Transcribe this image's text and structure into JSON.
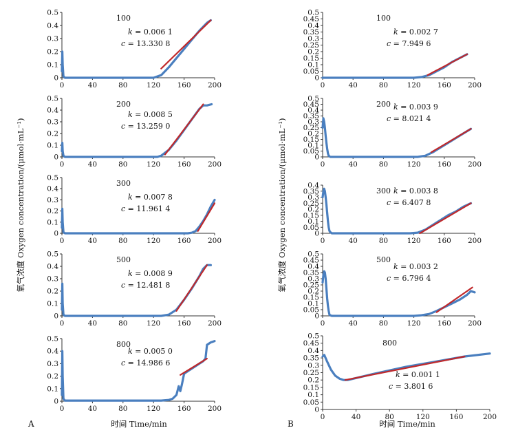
{
  "figure": {
    "panel_labels": [
      "A",
      "B"
    ],
    "xlabel": "时间 Time/min",
    "ylabel": "氧气浓度 Oxygen concentration/(μmol·mL⁻¹)",
    "colors": {
      "data_line": "#4a7fbf",
      "fit_line": "#c0282a",
      "axis": "#333333"
    }
  },
  "chart_data": [
    {
      "id": "A100",
      "type": "line",
      "panel": "A",
      "label": "100",
      "k": "0.006 1",
      "c": "13.330 8",
      "xlim": [
        0,
        200
      ],
      "ylim": [
        0,
        0.5
      ],
      "xticks": [
        0,
        40,
        80,
        120,
        160,
        200
      ],
      "yticks": [
        0,
        0.1,
        0.2,
        0.3,
        0.4,
        0.5
      ],
      "series": [
        {
          "name": "measured",
          "x": [
            0,
            0.5,
            1,
            2,
            4,
            120,
            130,
            140,
            150,
            160,
            170,
            180,
            190,
            195
          ],
          "y": [
            0.05,
            0.2,
            0.1,
            0.01,
            0,
            0,
            0.02,
            0.08,
            0.15,
            0.22,
            0.29,
            0.36,
            0.42,
            0.44
          ]
        },
        {
          "name": "fit",
          "x": [
            130,
            195
          ],
          "y": [
            0.07,
            0.44
          ]
        }
      ]
    },
    {
      "id": "A200",
      "type": "line",
      "panel": "A",
      "label": "200",
      "k": "0.008 5",
      "c": "13.259 0",
      "xlim": [
        0,
        200
      ],
      "ylim": [
        0,
        0.5
      ],
      "xticks": [
        0,
        40,
        80,
        120,
        160,
        200
      ],
      "yticks": [
        0,
        0.1,
        0.2,
        0.3,
        0.4,
        0.5
      ],
      "series": [
        {
          "name": "measured",
          "x": [
            0,
            0.5,
            1,
            2,
            4,
            125,
            130,
            140,
            150,
            160,
            170,
            180,
            185,
            190,
            196
          ],
          "y": [
            0.05,
            0.12,
            0.05,
            0.01,
            0,
            0,
            0.01,
            0.06,
            0.14,
            0.23,
            0.32,
            0.41,
            0.44,
            0.44,
            0.45
          ]
        },
        {
          "name": "fit",
          "x": [
            135,
            185
          ],
          "y": [
            0.02,
            0.45
          ]
        }
      ]
    },
    {
      "id": "A300",
      "type": "line",
      "panel": "A",
      "label": "300",
      "k": "0.007 8",
      "c": "11.961 4",
      "xlim": [
        0,
        200
      ],
      "ylim": [
        0,
        0.5
      ],
      "xticks": [
        0,
        40,
        80,
        120,
        160,
        200
      ],
      "yticks": [
        0,
        0.1,
        0.2,
        0.3,
        0.4,
        0.5
      ],
      "series": [
        {
          "name": "measured",
          "x": [
            0,
            0.5,
            1,
            2,
            4,
            165,
            170,
            175,
            180,
            185,
            190,
            195,
            200
          ],
          "y": [
            0.05,
            0.22,
            0.1,
            0.01,
            0,
            0,
            0.005,
            0.02,
            0.06,
            0.11,
            0.17,
            0.24,
            0.3
          ]
        },
        {
          "name": "fit",
          "x": [
            178,
            200
          ],
          "y": [
            0.02,
            0.27
          ]
        }
      ]
    },
    {
      "id": "A500",
      "type": "line",
      "panel": "A",
      "label": "500",
      "k": "0.008 9",
      "c": "12.481 8",
      "xlim": [
        0,
        200
      ],
      "ylim": [
        0,
        0.5
      ],
      "xticks": [
        0,
        40,
        80,
        120,
        160,
        200
      ],
      "yticks": [
        0,
        0.1,
        0.2,
        0.3,
        0.4,
        0.5
      ],
      "series": [
        {
          "name": "measured",
          "x": [
            0,
            0.5,
            1,
            2,
            4,
            130,
            140,
            150,
            160,
            170,
            180,
            185,
            190,
            195
          ],
          "y": [
            0.05,
            0.26,
            0.1,
            0.01,
            0,
            0,
            0.01,
            0.05,
            0.13,
            0.22,
            0.32,
            0.38,
            0.41,
            0.41
          ]
        },
        {
          "name": "fit",
          "x": [
            150,
            190
          ],
          "y": [
            0.04,
            0.41
          ]
        }
      ]
    },
    {
      "id": "A800",
      "type": "line",
      "panel": "A",
      "label": "800",
      "k": "0.005 0",
      "c": "14.986 6",
      "xlim": [
        0,
        200
      ],
      "ylim": [
        0,
        0.5
      ],
      "xticks": [
        0,
        40,
        80,
        120,
        160,
        200
      ],
      "yticks": [
        0,
        0.1,
        0.2,
        0.3,
        0.4,
        0.5
      ],
      "series": [
        {
          "name": "measured",
          "x": [
            0,
            0.5,
            1,
            2,
            4,
            130,
            140,
            145,
            150,
            153,
            155,
            157,
            160,
            165,
            170,
            175,
            180,
            185,
            188,
            190,
            195,
            200
          ],
          "y": [
            0.05,
            0.4,
            0.2,
            0.02,
            0.005,
            0.005,
            0.01,
            0.02,
            0.05,
            0.12,
            0.08,
            0.13,
            0.22,
            0.24,
            0.26,
            0.28,
            0.3,
            0.32,
            0.34,
            0.45,
            0.47,
            0.48
          ]
        },
        {
          "name": "fit",
          "x": [
            155,
            190
          ],
          "y": [
            0.21,
            0.34
          ]
        }
      ]
    },
    {
      "id": "B100",
      "type": "line",
      "panel": "B",
      "label": "100",
      "k": "0.002 7",
      "c": "7.949 6",
      "xlim": [
        0,
        200
      ],
      "ylim": [
        0,
        0.5
      ],
      "xticks": [
        0,
        40,
        80,
        120,
        160,
        200
      ],
      "yticks": [
        0,
        0.05,
        0.1,
        0.15,
        0.2,
        0.25,
        0.3,
        0.35,
        0.4,
        0.45,
        0.5
      ],
      "series": [
        {
          "name": "measured",
          "x": [
            0,
            120,
            130,
            140,
            150,
            160,
            170,
            180,
            190
          ],
          "y": [
            0,
            0,
            0.005,
            0.02,
            0.05,
            0.08,
            0.12,
            0.15,
            0.18
          ]
        },
        {
          "name": "fit",
          "x": [
            138,
            190
          ],
          "y": [
            0.02,
            0.18
          ]
        }
      ]
    },
    {
      "id": "B200",
      "type": "line",
      "panel": "B",
      "label": "200",
      "k": "0.003 9",
      "c": "8.021 4",
      "xlim": [
        0,
        200
      ],
      "ylim": [
        0,
        0.5
      ],
      "xticks": [
        0,
        40,
        80,
        120,
        160,
        200
      ],
      "yticks": [
        0,
        0.05,
        0.1,
        0.15,
        0.2,
        0.25,
        0.3,
        0.35,
        0.4,
        0.45,
        0.5
      ],
      "series": [
        {
          "name": "measured",
          "x": [
            0,
            1,
            2,
            3,
            4,
            5,
            6,
            7,
            8,
            10,
            125,
            135,
            145,
            155,
            165,
            175,
            185,
            195
          ],
          "y": [
            0.25,
            0.33,
            0.3,
            0.25,
            0.18,
            0.12,
            0.07,
            0.03,
            0.01,
            0,
            0,
            0.01,
            0.04,
            0.08,
            0.12,
            0.16,
            0.2,
            0.24
          ]
        },
        {
          "name": "fit",
          "x": [
            143,
            195
          ],
          "y": [
            0.04,
            0.24
          ]
        }
      ]
    },
    {
      "id": "B300",
      "type": "line",
      "panel": "B",
      "label": "300",
      "k": "0.003 8",
      "c": "6.407 8",
      "xlim": [
        0,
        200
      ],
      "ylim": [
        0,
        0.4
      ],
      "xticks": [
        0,
        40,
        80,
        120,
        160,
        200
      ],
      "yticks": [
        0,
        0.05,
        0.1,
        0.15,
        0.2,
        0.25,
        0.3,
        0.35,
        0.4
      ],
      "series": [
        {
          "name": "measured",
          "x": [
            0,
            1,
            2,
            3,
            4,
            5,
            6,
            7,
            8,
            9,
            10,
            12,
            115,
            125,
            135,
            145,
            155,
            165,
            175,
            185,
            195
          ],
          "y": [
            0.3,
            0.35,
            0.37,
            0.35,
            0.3,
            0.24,
            0.17,
            0.1,
            0.05,
            0.02,
            0.01,
            0,
            0,
            0.005,
            0.03,
            0.07,
            0.11,
            0.15,
            0.18,
            0.22,
            0.25
          ]
        },
        {
          "name": "fit",
          "x": [
            128,
            195
          ],
          "y": [
            0,
            0.25
          ]
        }
      ]
    },
    {
      "id": "B500",
      "type": "line",
      "panel": "B",
      "label": "500",
      "k": "0.003 2",
      "c": "6.796 4",
      "xlim": [
        0,
        200
      ],
      "ylim": [
        0,
        0.5
      ],
      "xticks": [
        0,
        40,
        80,
        120,
        160,
        200
      ],
      "yticks": [
        0,
        0.05,
        0.1,
        0.15,
        0.2,
        0.25,
        0.3,
        0.35,
        0.4,
        0.45,
        0.5
      ],
      "series": [
        {
          "name": "measured",
          "x": [
            0,
            1,
            2,
            3,
            4,
            5,
            6,
            7,
            8,
            9,
            10,
            12,
            120,
            130,
            140,
            150,
            160,
            170,
            180,
            190,
            195,
            200
          ],
          "y": [
            0.27,
            0.33,
            0.36,
            0.35,
            0.3,
            0.22,
            0.14,
            0.08,
            0.04,
            0.01,
            0.005,
            0,
            0,
            0.005,
            0.015,
            0.04,
            0.07,
            0.1,
            0.13,
            0.17,
            0.2,
            0.19
          ]
        },
        {
          "name": "fit",
          "x": [
            150,
            197
          ],
          "y": [
            0.03,
            0.23
          ]
        }
      ]
    },
    {
      "id": "B800",
      "type": "line",
      "panel": "B",
      "label": "800",
      "k": "0.001 1",
      "c": "3.801 6",
      "xlim": [
        0,
        200
      ],
      "ylim": [
        0,
        0.5
      ],
      "xticks": [
        0,
        40,
        80,
        120,
        160,
        200
      ],
      "yticks": [
        0,
        0.05,
        0.1,
        0.15,
        0.2,
        0.25,
        0.3,
        0.35,
        0.4,
        0.45,
        0.5
      ],
      "series": [
        {
          "name": "measured",
          "x": [
            0,
            2,
            5,
            10,
            15,
            20,
            25,
            30,
            60,
            100,
            140,
            170,
            200
          ],
          "y": [
            0.36,
            0.37,
            0.33,
            0.27,
            0.23,
            0.21,
            0.2,
            0.2,
            0.24,
            0.29,
            0.33,
            0.36,
            0.38
          ]
        },
        {
          "name": "fit",
          "x": [
            27,
            170
          ],
          "y": [
            0.2,
            0.36
          ]
        }
      ]
    }
  ]
}
